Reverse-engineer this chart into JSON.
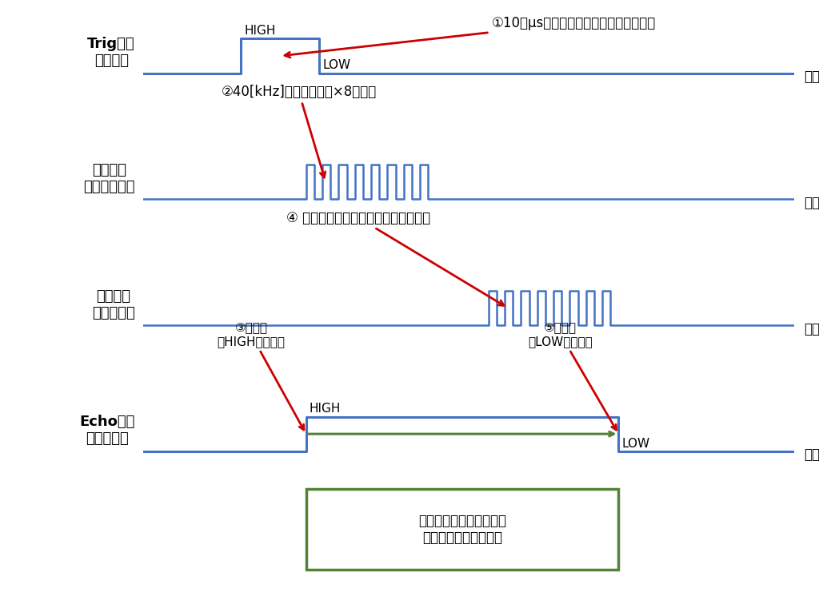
{
  "bg_color": "#ffffff",
  "signal_color": "#4472C4",
  "arrow_color": "#CC0000",
  "green_color": "#548235",
  "panel_labels": [
    "Trigピン\nへの入力",
    "超音波を\n発生させる側",
    "超音波を\n受け取る側",
    "Echoピン\nからの出力"
  ],
  "time_label": "時間",
  "box_text": "超音波を発生させてから\n戻ってくるまでの時間"
}
